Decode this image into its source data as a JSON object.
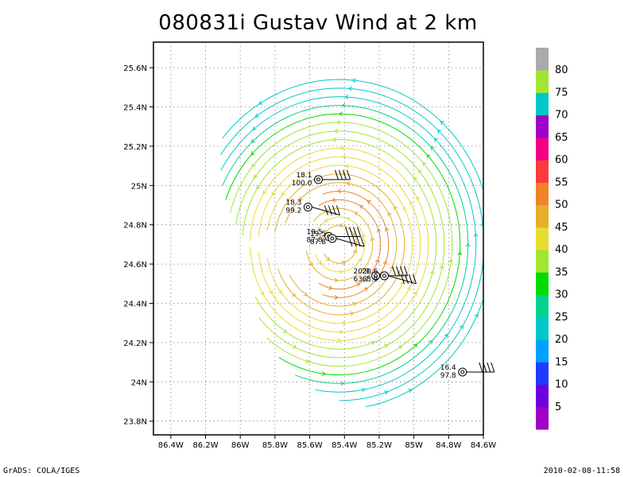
{
  "title": "080831i Gustav Wind at 2 km",
  "footer": {
    "left": "GrADS: COLA/IGES",
    "right": "2010-02-08-11:58"
  },
  "chart_data": {
    "type": "streamline map",
    "title": "080831i Gustav Wind at 2 km",
    "x_ticks": [
      "86.4W",
      "86.2W",
      "86W",
      "85.8W",
      "85.6W",
      "85.4W",
      "85.2W",
      "85W",
      "84.8W",
      "84.6W"
    ],
    "y_ticks": [
      "25.6N",
      "25.4N",
      "25.2N",
      "25N",
      "24.8N",
      "24.6N",
      "24.4N",
      "24.2N",
      "24N",
      "23.8N"
    ],
    "xlim": [
      -86.5,
      -84.6
    ],
    "ylim": [
      23.73,
      25.73
    ],
    "grid": true,
    "center": {
      "lon": -85.43,
      "lat": 24.7
    },
    "colorbar": {
      "labels": [
        "5",
        "10",
        "15",
        "20",
        "25",
        "30",
        "35",
        "40",
        "45",
        "50",
        "55",
        "60",
        "65",
        "70",
        "75",
        "80"
      ],
      "colors": [
        "#a000c8",
        "#6e00dc",
        "#1e3cff",
        "#00a0ff",
        "#00c8c8",
        "#00d28c",
        "#00dc00",
        "#a0e632",
        "#e6dc32",
        "#e6af2d",
        "#f08228",
        "#fa3c3c",
        "#f00082",
        "#a000c8",
        "#00c8c8",
        "#a0e632",
        "#aaaaaa"
      ]
    },
    "observations": [
      {
        "lon": -85.55,
        "lat": 25.03,
        "label1": "18.1",
        "label2": "100.0"
      },
      {
        "lon": -85.61,
        "lat": 24.89,
        "label1": "18.3",
        "label2": "99.2"
      },
      {
        "lon": -85.49,
        "lat": 24.74,
        "label1": "19.5",
        "label2": "87.8"
      },
      {
        "lon": -85.47,
        "lat": 24.73,
        "label1": "19.5",
        "label2": "87.8"
      },
      {
        "lon": -85.22,
        "lat": 24.54,
        "label1": "20.9",
        "label2": "63.7"
      },
      {
        "lon": -85.17,
        "lat": 24.54,
        "label1": "20.6",
        "label2": "63.9"
      },
      {
        "lon": -84.72,
        "lat": 24.05,
        "label1": "16.4",
        "label2": "97.8"
      }
    ]
  }
}
